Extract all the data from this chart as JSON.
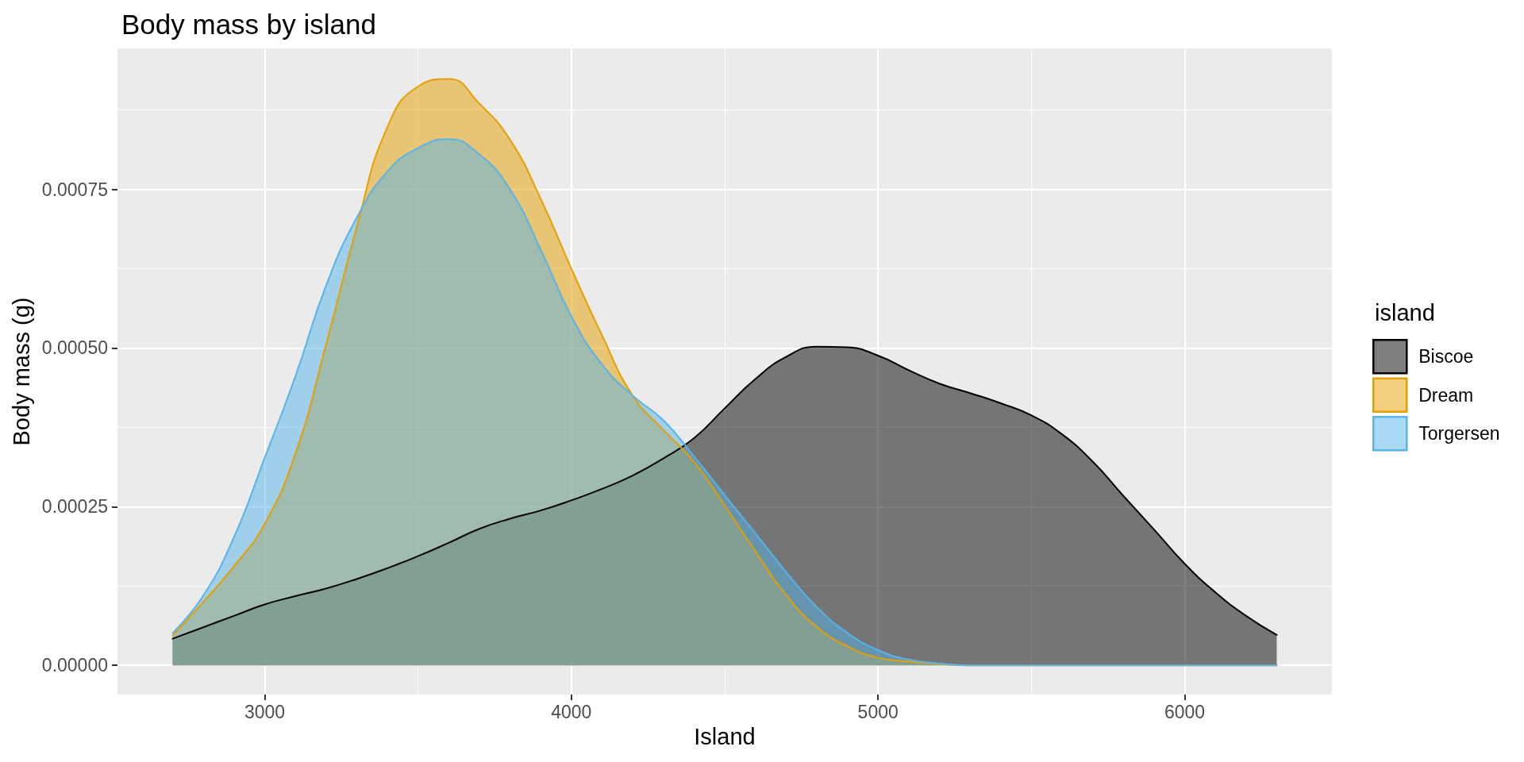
{
  "chart_data": {
    "type": "area",
    "title": "Body mass by island",
    "xlabel": "Island",
    "ylabel": "Body mass (g)",
    "legend_title": "island",
    "legend": "right",
    "grid": true,
    "x": [
      2700,
      2800,
      2900,
      3000,
      3100,
      3200,
      3300,
      3400,
      3500,
      3600,
      3700,
      3800,
      3900,
      4000,
      4100,
      4200,
      4300,
      4400,
      4500,
      4600,
      4700,
      4800,
      4900,
      5000,
      5100,
      5200,
      5300,
      5400,
      5500,
      5600,
      5700,
      5800,
      5900,
      6000,
      6100,
      6200,
      6300
    ],
    "series": [
      {
        "name": "Biscoe",
        "color": "#000000",
        "values": [
          4.2e-05,
          6e-05,
          7.8e-05,
          9.6e-05,
          0.000109,
          0.000121,
          0.000136,
          0.000153,
          0.000172,
          0.000193,
          0.000215,
          0.000231,
          0.000244,
          0.00026,
          0.000278,
          0.000299,
          0.000326,
          0.000358,
          0.000405,
          0.000451,
          0.000486,
          0.000502,
          0.000501,
          0.000488,
          0.000465,
          0.000444,
          0.000429,
          0.000413,
          0.000394,
          0.000364,
          0.000321,
          0.000267,
          0.000214,
          0.00016,
          0.000115,
          7.8e-05,
          4.8e-05
        ]
      },
      {
        "name": "Dream",
        "color": "#e69f00",
        "values": [
          4.7e-05,
          0.0001,
          0.000156,
          0.000223,
          0.000333,
          0.000505,
          0.00069,
          0.000848,
          0.000912,
          0.000924,
          0.000885,
          0.000828,
          0.000735,
          0.000625,
          0.00052,
          0.000425,
          0.000371,
          0.000321,
          0.000252,
          0.00018,
          0.000111,
          6.1e-05,
          3e-05,
          1.2e-05,
          6e-06,
          2e-06,
          0,
          0,
          0,
          0,
          0,
          0,
          0,
          0,
          0,
          0,
          0
        ]
      },
      {
        "name": "Torgersen",
        "color": "#56b4e9",
        "values": [
          5.1e-05,
          0.00011,
          0.000202,
          0.000327,
          0.000455,
          0.000598,
          0.000705,
          0.000778,
          0.000815,
          0.000829,
          0.000805,
          0.00075,
          0.000655,
          0.00055,
          0.000474,
          0.000425,
          0.000386,
          0.000329,
          0.000268,
          0.000208,
          0.000147,
          9.2e-05,
          5.1e-05,
          2.4e-05,
          9e-06,
          3e-06,
          0,
          0,
          0,
          0,
          0,
          0,
          0,
          0,
          0,
          0,
          0
        ]
      }
    ],
    "xlim": [
      2520,
      6480
    ],
    "xticks": [
      3000,
      4000,
      5000,
      6000
    ],
    "ylim": [
      -4.6e-05,
      0.000972
    ],
    "yticks": [
      {
        "value": 0,
        "label": "0.00000"
      },
      {
        "value": 0.00025,
        "label": "0.00025"
      },
      {
        "value": 0.0005,
        "label": "0.00050"
      },
      {
        "value": 0.00075,
        "label": "0.00075"
      }
    ]
  }
}
